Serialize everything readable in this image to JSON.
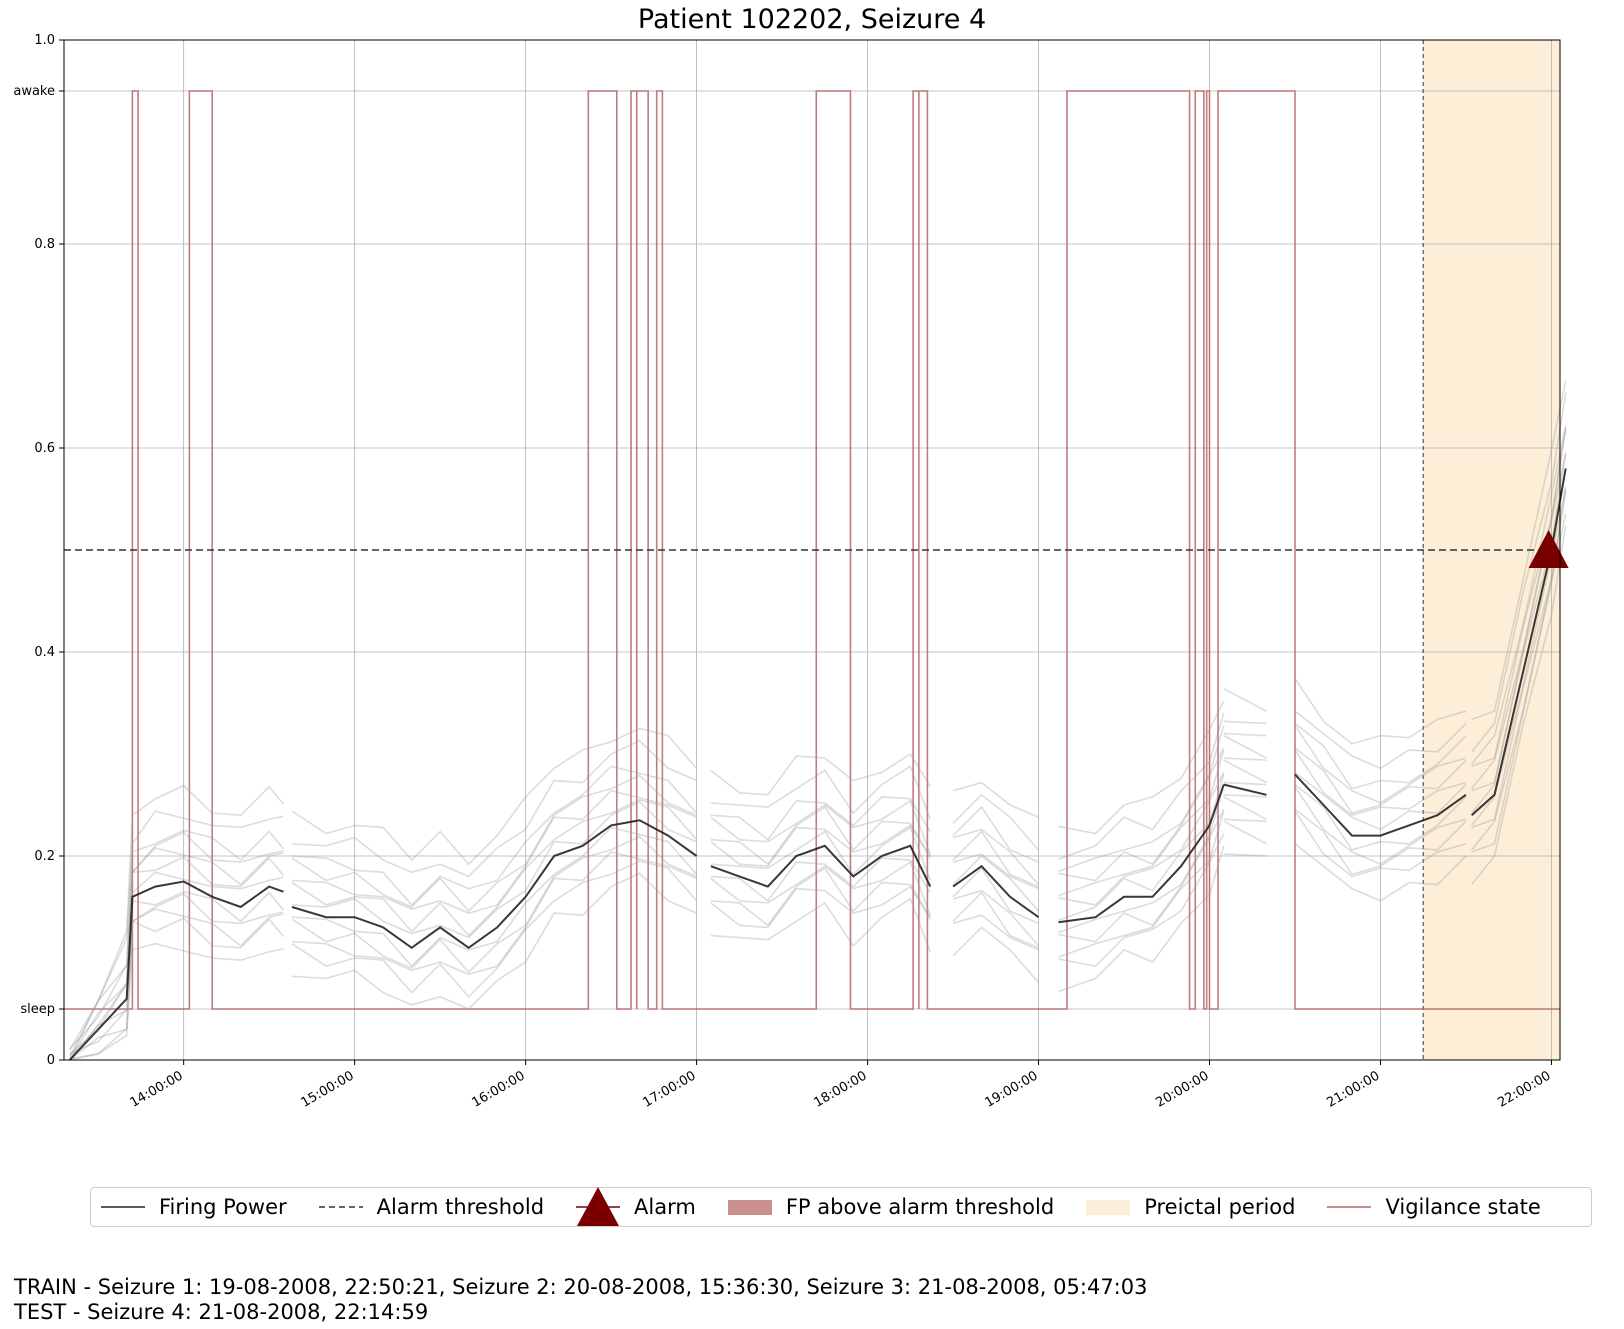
{
  "chart_data": {
    "type": "line",
    "title": "Patient 102202, Seizure 4",
    "xlabel": "",
    "ylabel": "",
    "ylim": [
      0,
      1.0
    ],
    "xlim_hours": [
      13.3,
      22.05
    ],
    "x_ticks": [
      "14:00:00",
      "15:00:00",
      "16:00:00",
      "17:00:00",
      "18:00:00",
      "19:00:00",
      "20:00:00",
      "21:00:00",
      "22:00:00"
    ],
    "y_ticks": [
      {
        "value": 0,
        "label": "0"
      },
      {
        "value": 0.05,
        "label": "sleep"
      },
      {
        "value": 0.2,
        "label": "0.2"
      },
      {
        "value": 0.4,
        "label": "0.4"
      },
      {
        "value": 0.6,
        "label": "0.6"
      },
      {
        "value": 0.8,
        "label": "0.8"
      },
      {
        "value": 0.95,
        "label": "awake"
      },
      {
        "value": 1.0,
        "label": "1.0"
      }
    ],
    "grid": true,
    "alarm_threshold": 0.5,
    "preictal_period": {
      "start": "21:14:59",
      "end": "22:14:59"
    },
    "alarm": {
      "time": "21:59:00",
      "value": 0.5
    },
    "firing_power": {
      "name": "Firing Power",
      "segments": [
        {
          "x": [
            "13:20",
            "13:30",
            "13:40",
            "13:42",
            "13:50",
            "14:00",
            "14:10",
            "14:20",
            "14:30",
            "14:35"
          ],
          "y": [
            0.0,
            0.03,
            0.06,
            0.16,
            0.17,
            0.175,
            0.16,
            0.15,
            0.17,
            0.165
          ]
        },
        {
          "x": [
            "14:38",
            "14:50",
            "15:00",
            "15:10",
            "15:20",
            "15:30",
            "15:40",
            "15:50",
            "16:00",
            "16:10",
            "16:20",
            "16:30",
            "16:40",
            "16:50",
            "17:00"
          ],
          "y": [
            0.15,
            0.14,
            0.14,
            0.13,
            0.11,
            0.13,
            0.11,
            0.13,
            0.16,
            0.2,
            0.21,
            0.23,
            0.235,
            0.22,
            0.2
          ]
        },
        {
          "x": [
            "17:05",
            "17:15",
            "17:25",
            "17:35",
            "17:45",
            "17:55",
            "18:05",
            "18:15",
            "18:22"
          ],
          "y": [
            0.19,
            0.18,
            0.17,
            0.2,
            0.21,
            0.18,
            0.2,
            0.21,
            0.17
          ]
        },
        {
          "x": [
            "18:30",
            "18:40",
            "18:50",
            "19:00"
          ],
          "y": [
            0.17,
            0.19,
            0.16,
            0.14
          ]
        },
        {
          "x": [
            "19:07",
            "19:20",
            "19:30",
            "19:40",
            "19:50",
            "20:00",
            "20:05"
          ],
          "y": [
            0.135,
            0.14,
            0.16,
            0.16,
            0.19,
            0.23,
            0.27
          ]
        },
        {
          "x": [
            "20:05",
            "20:20"
          ],
          "y": [
            0.27,
            0.26
          ]
        },
        {
          "x": [
            "20:30",
            "20:40",
            "20:50",
            "21:00",
            "21:10",
            "21:20",
            "21:30"
          ],
          "y": [
            0.28,
            0.25,
            0.22,
            0.22,
            0.23,
            0.24,
            0.26
          ]
        },
        {
          "x": [
            "21:32",
            "21:40",
            "21:50",
            "22:00",
            "22:05"
          ],
          "y": [
            0.24,
            0.26,
            0.38,
            0.5,
            0.58
          ]
        }
      ]
    },
    "vigilance_state": {
      "name": "Vigilance state",
      "awake_intervals": [
        [
          "13:42",
          "13:44"
        ],
        [
          "14:02",
          "14:10"
        ],
        [
          "16:22",
          "16:32"
        ],
        [
          "16:37",
          "16:39"
        ],
        [
          "16:39",
          "16:43"
        ],
        [
          "16:46",
          "16:48"
        ],
        [
          "17:42",
          "17:54"
        ],
        [
          "18:16",
          "18:18"
        ],
        [
          "18:18",
          "18:21"
        ],
        [
          "19:10",
          "19:53"
        ],
        [
          "19:55",
          "19:58"
        ],
        [
          "19:59",
          "20:00"
        ],
        [
          "20:03",
          "20:30"
        ]
      ]
    },
    "legend": [
      "Firing Power",
      "Alarm threshold",
      "Alarm",
      "FP above alarm threshold",
      "Preictal period",
      "Vigilance state"
    ],
    "legend_placement": "bottom"
  },
  "colors": {
    "firing_power": "#222222",
    "fp_runs": "#9a9a9a",
    "threshold": "#333333",
    "alarm": "#7a0000",
    "fp_above": "#c98f8f",
    "preictal": "#fdeed8",
    "vigilance": "#b56666"
  },
  "footer": {
    "train": "TRAIN - Seizure 1: 19-08-2008, 22:50:21, Seizure 2: 20-08-2008, 15:36:30, Seizure 3: 21-08-2008, 05:47:03",
    "test": "TEST - Seizure 4: 21-08-2008, 22:14:59"
  }
}
